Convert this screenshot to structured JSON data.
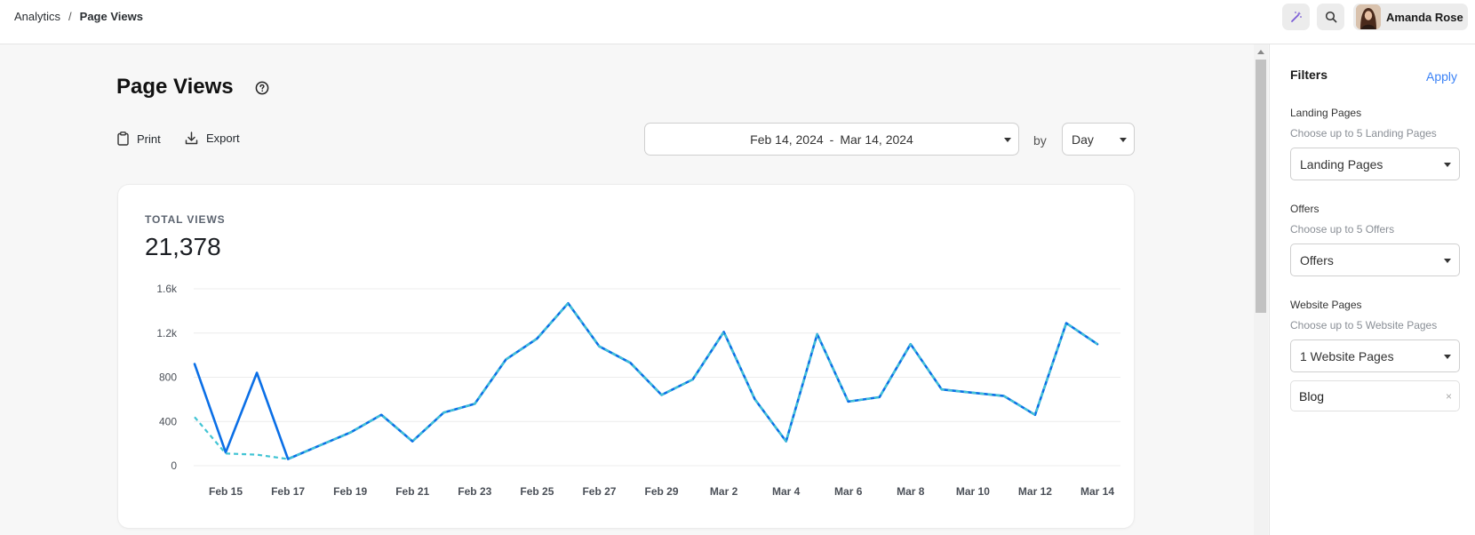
{
  "breadcrumb": {
    "parent": "Analytics",
    "separator": "/",
    "current": "Page Views"
  },
  "topbar": {
    "user_name": "Amanda Rose"
  },
  "page": {
    "title": "Page Views",
    "print_label": "Print",
    "export_label": "Export"
  },
  "date_range": {
    "start": "Feb 14, 2024",
    "dash": "-",
    "end": "Mar 14, 2024",
    "by_label": "by",
    "granularity": "Day"
  },
  "kpi": {
    "label": "TOTAL VIEWS",
    "value": "21,378"
  },
  "colors": {
    "accent": "#3b82f6",
    "line_primary": "#0b6fe6",
    "line_secondary": "#41c4d4",
    "icon_purple": "#7b5cd6"
  },
  "chart_data": {
    "type": "line",
    "x": [
      "Feb 14",
      "Feb 15",
      "Feb 16",
      "Feb 17",
      "Feb 18",
      "Feb 19",
      "Feb 20",
      "Feb 21",
      "Feb 22",
      "Feb 23",
      "Feb 24",
      "Feb 25",
      "Feb 26",
      "Feb 27",
      "Feb 28",
      "Feb 29",
      "Mar 1",
      "Mar 2",
      "Mar 3",
      "Mar 4",
      "Mar 5",
      "Mar 6",
      "Mar 7",
      "Mar 8",
      "Mar 9",
      "Mar 10",
      "Mar 11",
      "Mar 12",
      "Mar 13",
      "Mar 14"
    ],
    "tick_labels": [
      "Feb 15",
      "Feb 17",
      "Feb 19",
      "Feb 21",
      "Feb 23",
      "Feb 25",
      "Feb 27",
      "Feb 29",
      "Mar 2",
      "Mar 4",
      "Mar 6",
      "Mar 8",
      "Mar 10",
      "Mar 12",
      "Mar 14"
    ],
    "y_ticks": [
      "0",
      "400",
      "800",
      "1.2k",
      "1.6k"
    ],
    "ylim": [
      0,
      1600
    ],
    "grid": true,
    "series": [
      {
        "values": [
          920,
          120,
          840,
          60,
          180,
          300,
          460,
          220,
          480,
          560,
          960,
          1150,
          1470,
          1080,
          930,
          640,
          780,
          1210,
          600,
          220,
          1190,
          580,
          620,
          1100,
          690,
          660,
          630,
          460,
          1290,
          1100
        ],
        "style": "solid"
      },
      {
        "values": [
          440,
          110,
          100,
          60,
          180,
          300,
          460,
          220,
          480,
          560,
          960,
          1150,
          1470,
          1080,
          930,
          640,
          780,
          1210,
          600,
          220,
          1190,
          580,
          620,
          1100,
          690,
          660,
          630,
          460,
          1290,
          1100
        ],
        "style": "dashed"
      }
    ]
  },
  "filters": {
    "title": "Filters",
    "apply_label": "Apply",
    "groups": [
      {
        "label": "Landing Pages",
        "hint": "Choose up to 5 Landing Pages",
        "value": "Landing Pages"
      },
      {
        "label": "Offers",
        "hint": "Choose up to 5 Offers",
        "value": "Offers"
      },
      {
        "label": "Website Pages",
        "hint": "Choose up to 5 Website Pages",
        "value": "1 Website Pages"
      }
    ],
    "selected_chip": "Blog",
    "chip_remove": "×"
  }
}
